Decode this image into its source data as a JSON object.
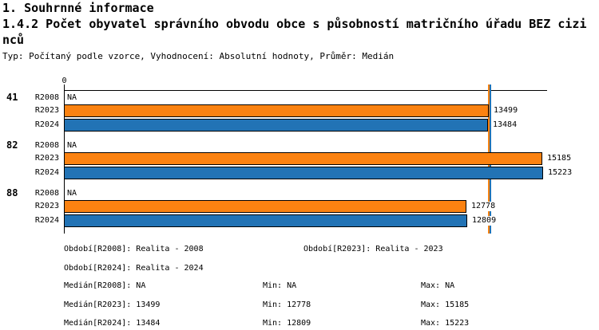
{
  "title_line1": "1. Souhrnné informace",
  "title_line2": "1.4.2 Počet obyvatel správního obvodu obce s působností matričního úřadu BEZ cizinců",
  "subtitle": "Typ: Počítaný podle vzorce, Vyhodnocení: Absolutní hodnoty, Průměr: Medián",
  "chart_data": {
    "type": "bar",
    "orientation": "horizontal",
    "title": "1.4.2 Počet obyvatel správního obvodu obce s působností matričního úřadu BEZ cizinců",
    "x_axis": {
      "origin_label": "0",
      "min": 0,
      "max_shown": 15223,
      "gridlines": false
    },
    "series_colors": {
      "R2023": "#FB8211",
      "R2024": "#2273B5"
    },
    "groups": [
      {
        "group": "41",
        "bars": [
          {
            "series": "R2008",
            "value": null,
            "display": "NA"
          },
          {
            "series": "R2023",
            "value": 13499,
            "display": "13499"
          },
          {
            "series": "R2024",
            "value": 13484,
            "display": "13484"
          }
        ]
      },
      {
        "group": "82",
        "bars": [
          {
            "series": "R2008",
            "value": null,
            "display": "NA"
          },
          {
            "series": "R2023",
            "value": 15185,
            "display": "15185"
          },
          {
            "series": "R2024",
            "value": 15223,
            "display": "15223"
          }
        ]
      },
      {
        "group": "88",
        "bars": [
          {
            "series": "R2008",
            "value": null,
            "display": "NA"
          },
          {
            "series": "R2023",
            "value": 12778,
            "display": "12778"
          },
          {
            "series": "R2024",
            "value": 12809,
            "display": "12809"
          }
        ]
      }
    ],
    "median_lines": [
      {
        "series": "R2023",
        "value": 13499,
        "color": "#FB8211"
      },
      {
        "series": "R2024",
        "value": 13484,
        "color": "#2273B5"
      }
    ],
    "legend_position": "bottom"
  },
  "footer": {
    "periods": [
      "Období[R2008]: Realita - 2008",
      "Období[R2023]: Realita - 2023",
      "Období[R2024]: Realita - 2024"
    ],
    "stats": [
      {
        "median": "Medián[R2008]: NA",
        "min": "Min: NA",
        "max": "Max: NA"
      },
      {
        "median": "Medián[R2023]: 13499",
        "min": "Min: 12778",
        "max": "Max: 15185"
      },
      {
        "median": "Medián[R2024]: 13484",
        "min": "Min: 12809",
        "max": "Max: 15223"
      }
    ]
  }
}
